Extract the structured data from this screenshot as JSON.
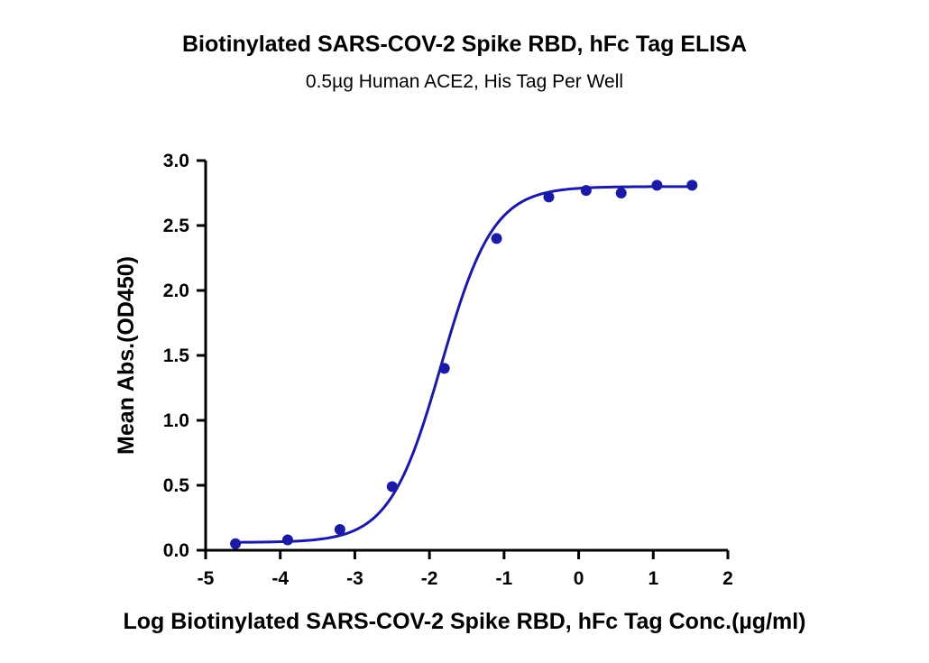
{
  "chart_data": {
    "type": "scatter",
    "title": "Biotinylated SARS-COV-2 Spike RBD, hFc Tag ELISA",
    "subtitle": "0.5µg Human ACE2, His Tag Per Well",
    "xlabel": "Log Biotinylated SARS-COV-2 Spike RBD, hFc Tag Conc.(µg/ml)",
    "ylabel": "Mean Abs.(OD450)",
    "xlim": [
      -5,
      2
    ],
    "ylim": [
      0,
      3.0
    ],
    "xticks": [
      "-5",
      "-4",
      "-3",
      "-2",
      "-1",
      "0",
      "1",
      "2"
    ],
    "yticks": [
      "0.0",
      "0.5",
      "1.0",
      "1.5",
      "2.0",
      "2.5",
      "3.0"
    ],
    "grid": false,
    "series": [
      {
        "color": "#1a1aa6",
        "points": [
          {
            "x": -4.6,
            "y": 0.05
          },
          {
            "x": -3.9,
            "y": 0.08
          },
          {
            "x": -3.2,
            "y": 0.16
          },
          {
            "x": -2.5,
            "y": 0.49
          },
          {
            "x": -1.8,
            "y": 1.4
          },
          {
            "x": -1.1,
            "y": 2.4
          },
          {
            "x": -0.4,
            "y": 2.72
          },
          {
            "x": 0.1,
            "y": 2.77
          },
          {
            "x": 0.57,
            "y": 2.75
          },
          {
            "x": 1.05,
            "y": 2.81
          },
          {
            "x": 1.52,
            "y": 2.81
          }
        ],
        "fit": {
          "model": "4PL",
          "bottom": 0.06,
          "top": 2.8,
          "logEC50": -1.84,
          "hill": 1.25,
          "x_range": [
            -4.6,
            1.52
          ]
        }
      }
    ]
  }
}
